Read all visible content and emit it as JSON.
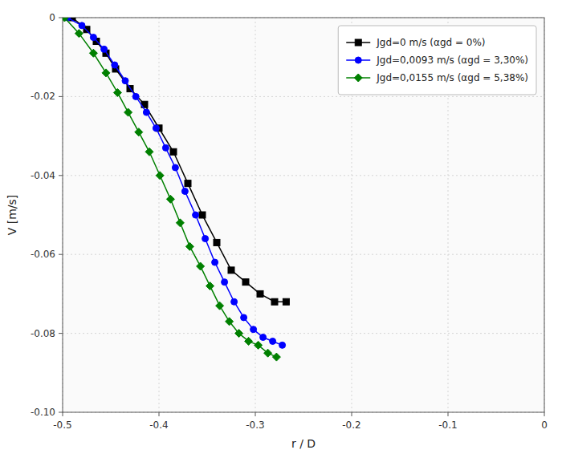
{
  "chart_data": {
    "type": "line",
    "xlabel": "r / D",
    "ylabel": "V [m/s]",
    "xlim": [
      -0.5,
      0.0
    ],
    "ylim": [
      -0.1,
      0.0
    ],
    "xticks": [
      -0.5,
      -0.4,
      -0.3,
      -0.2,
      -0.1,
      0
    ],
    "yticks": [
      {
        "value": -0.1,
        "label": "-0.10"
      },
      -0.08,
      -0.06,
      -0.04,
      -0.02,
      0
    ],
    "grid": true,
    "legend": "upper right",
    "series": [
      {
        "name": "Jgd=0 m/s (αgd = 0%)",
        "color": "black",
        "marker": "square",
        "x": [
          -0.49,
          -0.475,
          -0.465,
          -0.455,
          -0.445,
          -0.43,
          -0.415,
          -0.4,
          -0.385,
          -0.37,
          -0.355,
          -0.34,
          -0.325,
          -0.31,
          -0.295,
          -0.28,
          -0.268
        ],
        "values": [
          0.0,
          -0.003,
          -0.006,
          -0.009,
          -0.013,
          -0.018,
          -0.022,
          -0.028,
          -0.034,
          -0.042,
          -0.05,
          -0.057,
          -0.064,
          -0.067,
          -0.07,
          -0.072,
          -0.072
        ]
      },
      {
        "name": "Jgd=0,0093 m/s (αgd = 3,30%)",
        "color": "blue",
        "marker": "circle",
        "x": [
          -0.495,
          -0.48,
          -0.468,
          -0.457,
          -0.446,
          -0.435,
          -0.424,
          -0.413,
          -0.403,
          -0.393,
          -0.383,
          -0.373,
          -0.362,
          -0.352,
          -0.342,
          -0.332,
          -0.322,
          -0.312,
          -0.302,
          -0.292,
          -0.282,
          -0.272
        ],
        "values": [
          0.0,
          -0.002,
          -0.005,
          -0.008,
          -0.012,
          -0.016,
          -0.02,
          -0.024,
          -0.028,
          -0.033,
          -0.038,
          -0.044,
          -0.05,
          -0.056,
          -0.062,
          -0.067,
          -0.072,
          -0.076,
          -0.079,
          -0.081,
          -0.082,
          -0.083
        ]
      },
      {
        "name": "Jgd=0,0155 m/s (αgd = 5,38%)",
        "color": "green",
        "marker": "diamond",
        "x": [
          -0.498,
          -0.483,
          -0.468,
          -0.455,
          -0.443,
          -0.432,
          -0.421,
          -0.41,
          -0.399,
          -0.388,
          -0.378,
          -0.368,
          -0.357,
          -0.347,
          -0.337,
          -0.327,
          -0.317,
          -0.307,
          -0.297,
          -0.287,
          -0.278
        ],
        "values": [
          0.0,
          -0.004,
          -0.009,
          -0.014,
          -0.019,
          -0.024,
          -0.029,
          -0.034,
          -0.04,
          -0.046,
          -0.052,
          -0.058,
          -0.063,
          -0.068,
          -0.073,
          -0.077,
          -0.08,
          -0.082,
          -0.083,
          -0.085,
          -0.086
        ]
      }
    ]
  }
}
